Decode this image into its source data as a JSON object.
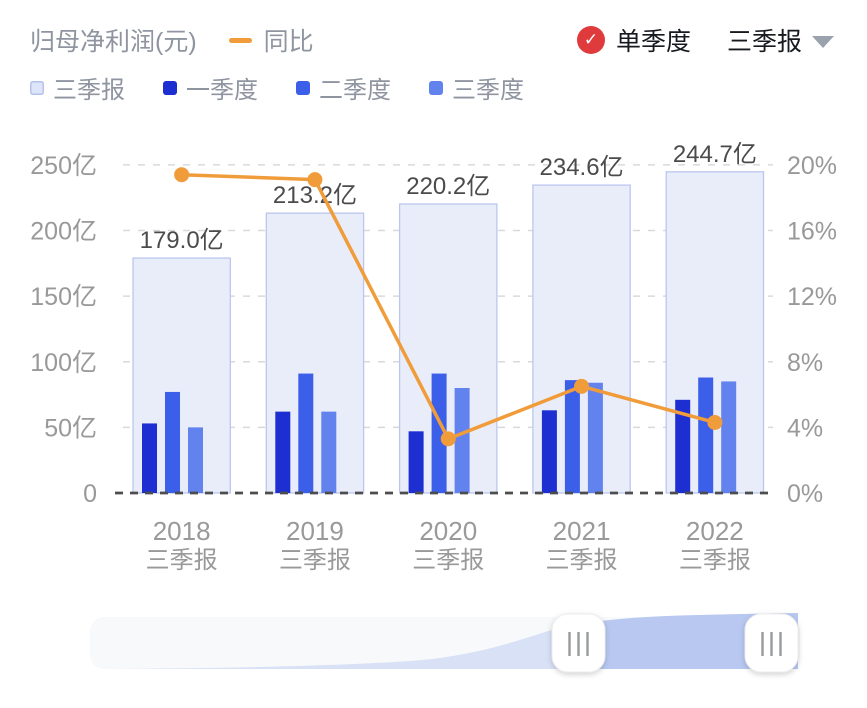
{
  "header": {
    "title": "归母净利润(元)",
    "line_legend": "同比",
    "toggle": {
      "label": "单季度",
      "checked": true
    },
    "dropdown": {
      "value": "三季报"
    }
  },
  "icons": {
    "check": "✓",
    "caret": "▼",
    "handle_grip": "|||"
  },
  "legend": {
    "items": [
      {
        "label": "三季报",
        "color": "#dde6f8",
        "border": "#b3c2ec"
      },
      {
        "label": "一季度",
        "color": "#1d2fd1",
        "border": ""
      },
      {
        "label": "二季度",
        "color": "#3c5fe9",
        "border": ""
      },
      {
        "label": "三季度",
        "color": "#6282ee",
        "border": ""
      }
    ]
  },
  "colors": {
    "accent_orange": "#f09c3b",
    "q1_bar": "#1d2fd1",
    "q2_bar": "#3c5fe9",
    "q3_bar": "#6282ee",
    "cumulative_fill": "#e9edf9",
    "cumulative_border": "#bbc6ee",
    "grid_line": "#d9d9d9",
    "axis_line": "#4d4d4d",
    "axis_label": "#999999",
    "bar_value_label": "#4b4b4b",
    "red_badge": "#e03b3c",
    "zoom_area_light": "#d4ddf6",
    "zoom_window_fill": "#b8c8f1"
  },
  "chart_data": {
    "type": "bar",
    "categories": [
      "2018",
      "2019",
      "2020",
      "2021",
      "2022"
    ],
    "category_sub_label": "三季报",
    "series": [
      {
        "name": "三季报",
        "type": "bar",
        "role": "cumulative",
        "values": [
          179.0,
          213.2,
          220.2,
          234.6,
          244.7
        ],
        "labels": [
          "179.0亿",
          "213.2亿",
          "220.2亿",
          "234.6亿",
          "244.7亿"
        ]
      },
      {
        "name": "一季度",
        "type": "bar",
        "values": [
          53,
          62,
          47,
          63,
          71
        ]
      },
      {
        "name": "二季度",
        "type": "bar",
        "values": [
          77,
          91,
          91,
          86,
          88
        ]
      },
      {
        "name": "三季度",
        "type": "bar",
        "values": [
          50,
          62,
          80,
          84,
          85
        ]
      },
      {
        "name": "同比",
        "type": "line",
        "axis": "right",
        "values": [
          19.4,
          19.1,
          3.3,
          6.5,
          4.3
        ]
      }
    ],
    "y_axis_left": {
      "ticks": [
        "0",
        "50亿",
        "100亿",
        "150亿",
        "200亿",
        "250亿"
      ],
      "min": 0,
      "max": 250
    },
    "y_axis_right": {
      "ticks": [
        "0%",
        "4%",
        "8%",
        "12%",
        "16%",
        "20%"
      ],
      "min": 0,
      "max": 20
    },
    "grid": true,
    "legend_position": "top"
  }
}
